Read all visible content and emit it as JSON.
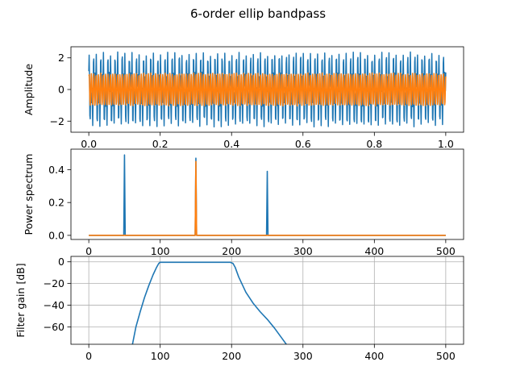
{
  "title": "6-order ellip bandpass",
  "colors": {
    "signal": "#1f77b4",
    "filtered": "#ff7f0e",
    "grid": "#b0b0b0"
  },
  "chart_data": [
    {
      "type": "line",
      "id": "time",
      "title": "",
      "xlabel": "",
      "ylabel": "Amplitude",
      "xlim": [
        -0.05,
        1.05
      ],
      "ylim": [
        -2.7,
        2.7
      ],
      "xticks": [
        0.0,
        0.2,
        0.4,
        0.6,
        0.8,
        1.0
      ],
      "xtick_labels": [
        "0.0",
        "0.2",
        "0.4",
        "0.6",
        "0.8",
        "1.0"
      ],
      "yticks": [
        -2,
        0,
        2
      ],
      "ytick_labels": [
        "−2",
        "0",
        "2"
      ],
      "grid": false,
      "series": [
        {
          "color": "#1f77b4",
          "sample_rate": 1000,
          "x_range": [
            0,
            1
          ],
          "components": [
            {
              "frequency": 50,
              "amplitude": 1
            },
            {
              "frequency": 150,
              "amplitude": 1
            },
            {
              "frequency": 250,
              "amplitude": 1
            }
          ],
          "noise_amplitude": 0.15
        },
        {
          "color": "#ff7f0e",
          "sample_rate": 1000,
          "x_range": [
            0,
            1
          ],
          "components": [
            {
              "frequency": 150,
              "amplitude": 1
            }
          ],
          "noise_amplitude": 0.05
        }
      ]
    },
    {
      "type": "line",
      "id": "spectrum",
      "title": "",
      "xlabel": "",
      "ylabel": "Power spectrum",
      "xlim": [
        -25,
        525
      ],
      "ylim": [
        -0.025,
        0.525
      ],
      "xticks": [
        0,
        100,
        200,
        300,
        400,
        500
      ],
      "xtick_labels": [
        "0",
        "100",
        "200",
        "300",
        "400",
        "500"
      ],
      "yticks": [
        0.0,
        0.2,
        0.4
      ],
      "ytick_labels": [
        "0.0",
        "0.2",
        "0.4"
      ],
      "grid": false,
      "series": [
        {
          "color": "#1f77b4",
          "x_range": [
            0,
            500
          ],
          "baseline": 0.0,
          "peaks": [
            {
              "x": 50,
              "y": 0.49
            },
            {
              "x": 150,
              "y": 0.47
            },
            {
              "x": 250,
              "y": 0.39
            }
          ]
        },
        {
          "color": "#ff7f0e",
          "x_range": [
            0,
            500
          ],
          "baseline": 0.0,
          "peaks": [
            {
              "x": 150,
              "y": 0.45
            }
          ]
        }
      ]
    },
    {
      "type": "line",
      "id": "gain",
      "title": "",
      "xlabel": "",
      "ylabel": "Filter gain [dB]",
      "xlim": [
        -25,
        525
      ],
      "ylim": [
        -76,
        5
      ],
      "xticks": [
        0,
        100,
        200,
        300,
        400,
        500
      ],
      "xtick_labels": [
        "0",
        "100",
        "200",
        "300",
        "400",
        "500"
      ],
      "yticks": [
        0,
        -20,
        -40,
        -60
      ],
      "ytick_labels": [
        "0",
        "−20",
        "−40",
        "−60"
      ],
      "grid": true,
      "series": [
        {
          "color": "#1f77b4",
          "x": [
            60,
            66,
            72,
            78,
            84,
            90,
            95,
            98,
            100,
            110,
            130,
            150,
            170,
            190,
            198,
            202,
            205,
            210,
            220,
            230,
            240,
            250,
            260,
            270,
            280
          ],
          "y": [
            -80,
            -60,
            -46,
            -33,
            -22,
            -12,
            -5,
            -1.5,
            -0.4,
            -0.4,
            -0.4,
            -0.4,
            -0.4,
            -0.4,
            -0.4,
            -1.5,
            -5,
            -14,
            -28,
            -38,
            -46,
            -53,
            -61,
            -70,
            -79
          ]
        }
      ]
    }
  ]
}
